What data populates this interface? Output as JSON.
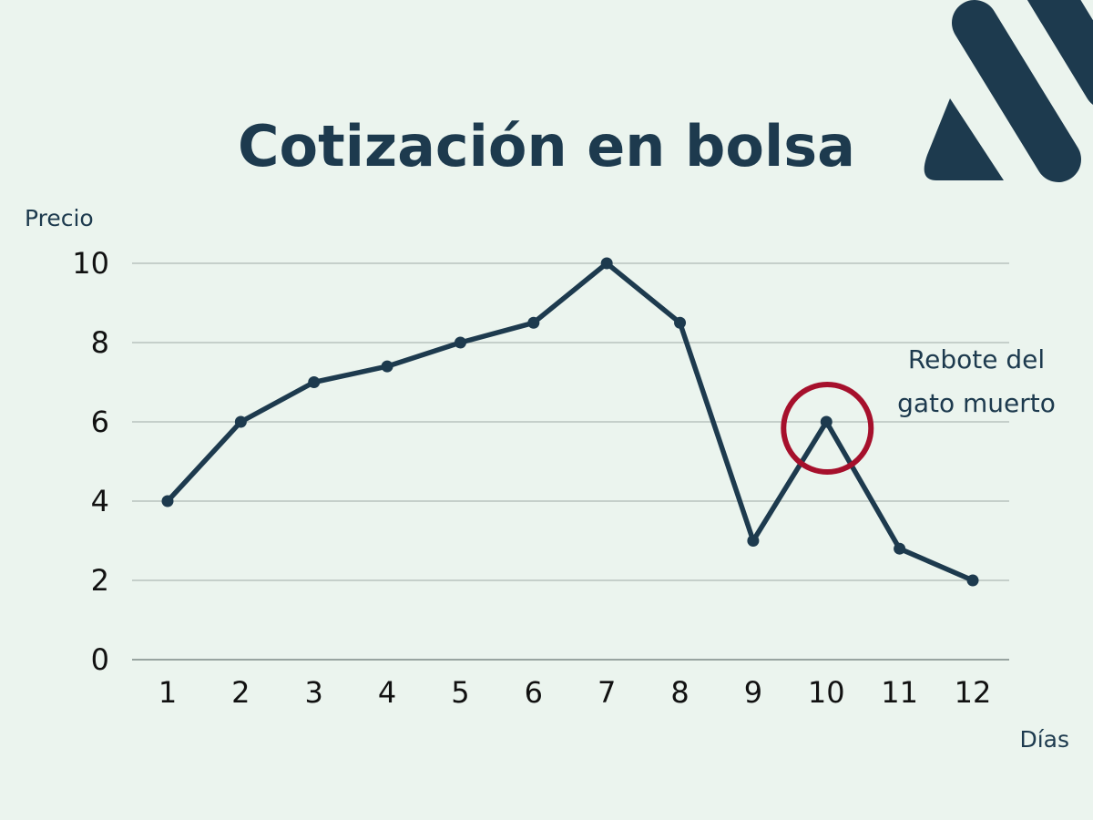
{
  "chart_data": {
    "type": "line",
    "title": "Cotización en bolsa",
    "xlabel": "Días",
    "ylabel": "Precio",
    "x": [
      1,
      2,
      3,
      4,
      5,
      6,
      7,
      8,
      9,
      10,
      11,
      12
    ],
    "x_tick_labels": [
      "1",
      "2",
      "3",
      "4",
      "5",
      "6",
      "7",
      "8",
      "9",
      "10",
      "11",
      "12"
    ],
    "series": [
      {
        "values": [
          4,
          6,
          7,
          7.4,
          8,
          8.5,
          10,
          8.5,
          3,
          6,
          2.8,
          2
        ]
      }
    ],
    "ylim": [
      0,
      10
    ],
    "y_ticks": [
      0,
      2,
      4,
      6,
      8,
      10
    ],
    "y_tick_labels": [
      "0",
      "2",
      "4",
      "6",
      "8",
      "10"
    ],
    "grid": true,
    "annotation": {
      "x": 10,
      "y": 6,
      "lines": [
        "Rebote del",
        "gato muerto"
      ],
      "circle_color": "#a6102c"
    },
    "colors": {
      "line": "#1d3a4e",
      "background": "#ebf4ee",
      "grid": "#aeb9b4",
      "logo": "#1d3a4e"
    }
  }
}
